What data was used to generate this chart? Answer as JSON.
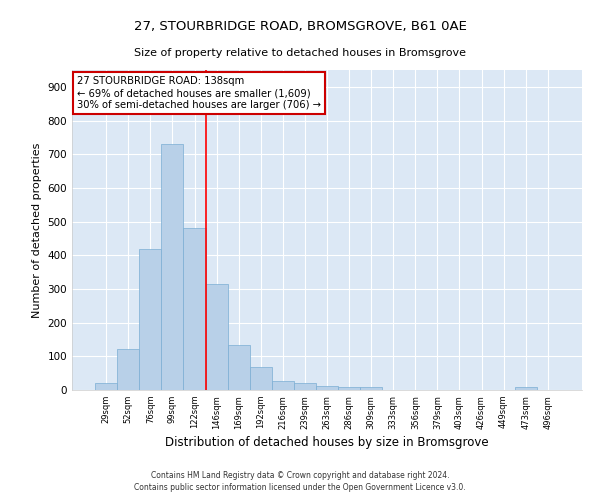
{
  "title": "27, STOURBRIDGE ROAD, BROMSGROVE, B61 0AE",
  "subtitle": "Size of property relative to detached houses in Bromsgrove",
  "xlabel": "Distribution of detached houses by size in Bromsgrove",
  "ylabel": "Number of detached properties",
  "bar_color": "#b8d0e8",
  "bar_edge_color": "#7aaed4",
  "background_color": "#dce8f5",
  "figure_background": "#ffffff",
  "grid_color": "#ffffff",
  "categories": [
    "29sqm",
    "52sqm",
    "76sqm",
    "99sqm",
    "122sqm",
    "146sqm",
    "169sqm",
    "192sqm",
    "216sqm",
    "239sqm",
    "263sqm",
    "286sqm",
    "309sqm",
    "333sqm",
    "356sqm",
    "379sqm",
    "403sqm",
    "426sqm",
    "449sqm",
    "473sqm",
    "496sqm"
  ],
  "values": [
    20,
    122,
    418,
    730,
    482,
    316,
    134,
    68,
    27,
    20,
    11,
    8,
    8,
    0,
    0,
    0,
    0,
    0,
    0,
    8,
    0
  ],
  "ylim": [
    0,
    950
  ],
  "yticks": [
    0,
    100,
    200,
    300,
    400,
    500,
    600,
    700,
    800,
    900
  ],
  "property_line_x": 4.5,
  "annotation_text": "27 STOURBRIDGE ROAD: 138sqm\n← 69% of detached houses are smaller (1,609)\n30% of semi-detached houses are larger (706) →",
  "annotation_box_color": "#ffffff",
  "annotation_box_edge_color": "#cc0000",
  "footnote1": "Contains HM Land Registry data © Crown copyright and database right 2024.",
  "footnote2": "Contains public sector information licensed under the Open Government Licence v3.0."
}
